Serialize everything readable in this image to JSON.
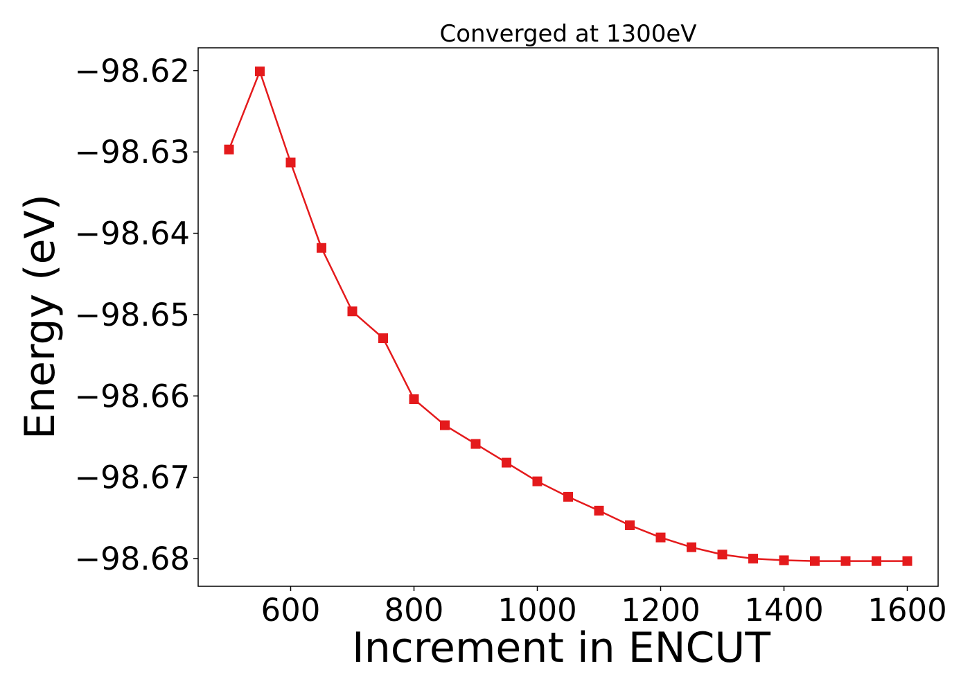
{
  "chart_data": {
    "type": "line",
    "title": "Converged at 1300eV",
    "xlabel": "Increment in ENCUT",
    "ylabel": "Energy (eV)",
    "xlim": [
      450,
      1650
    ],
    "ylim": [
      -98.6834,
      -98.6172
    ],
    "xticks": [
      600,
      800,
      1000,
      1200,
      1400,
      1600
    ],
    "xtick_labels": [
      "600",
      "800",
      "1000",
      "1200",
      "1400",
      "1600"
    ],
    "yticks": [
      -98.62,
      -98.63,
      -98.64,
      -98.65,
      -98.66,
      -98.67,
      -98.68
    ],
    "ytick_labels": [
      "−98.62",
      "−98.63",
      "−98.64",
      "−98.65",
      "−98.66",
      "−98.67",
      "−98.68"
    ],
    "grid": false,
    "marker": "square",
    "color": "#e41a1c",
    "series": [
      {
        "x": [
          500,
          550,
          600,
          650,
          700,
          750,
          800,
          850,
          900,
          950,
          1000,
          1050,
          1100,
          1150,
          1200,
          1250,
          1300,
          1350,
          1400,
          1450,
          1500,
          1550,
          1600
        ],
        "values": [
          -98.6297,
          -98.6201,
          -98.6313,
          -98.6418,
          -98.6496,
          -98.6529,
          -98.6604,
          -98.6636,
          -98.6659,
          -98.6682,
          -98.6705,
          -98.6724,
          -98.6741,
          -98.6759,
          -98.6774,
          -98.6786,
          -98.6795,
          -98.68,
          -98.6802,
          -98.6803,
          -98.6803,
          -98.6803,
          -98.6803
        ]
      }
    ]
  }
}
